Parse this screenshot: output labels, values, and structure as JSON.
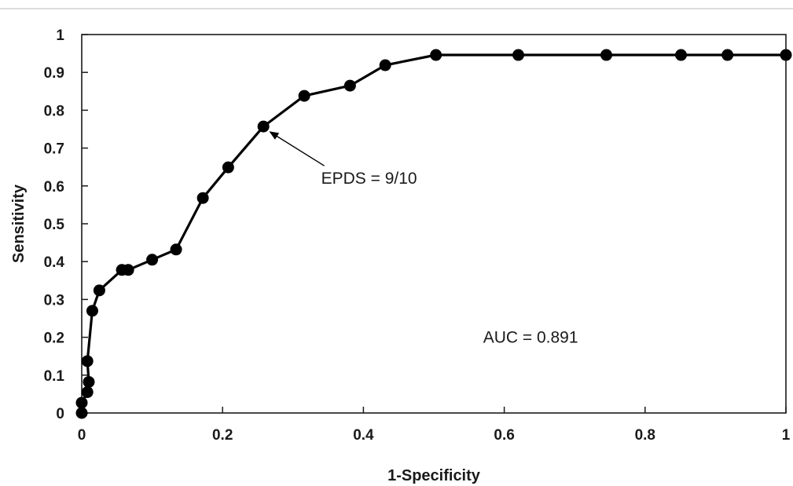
{
  "chart_data": {
    "type": "line",
    "title": "",
    "xlabel": "1-Specificity",
    "ylabel": "Sensitivity",
    "xlim": [
      0,
      1
    ],
    "ylim": [
      0,
      1
    ],
    "x_ticks": [
      "0",
      "0.2",
      "0.4",
      "0.6",
      "0.8",
      "1"
    ],
    "y_ticks": [
      "0",
      "0.1",
      "0.2",
      "0.3",
      "0.4",
      "0.5",
      "0.6",
      "0.7",
      "0.8",
      "0.9",
      "1"
    ],
    "grid": false,
    "line_color": "#000000",
    "series": [
      {
        "x": [
          0,
          0,
          0.008,
          0.01,
          0.008,
          0.015,
          0.025,
          0.057,
          0.066,
          0.1,
          0.134,
          0.172,
          0.208,
          0.258,
          0.316,
          0.381,
          0.431,
          0.503,
          0.62,
          0.745,
          0.851,
          0.917,
          1.0
        ],
        "y": [
          0,
          0.027,
          0.055,
          0.082,
          0.137,
          0.27,
          0.324,
          0.378,
          0.378,
          0.405,
          0.432,
          0.568,
          0.649,
          0.757,
          0.838,
          0.865,
          0.919,
          0.946,
          0.946,
          0.946,
          0.946,
          0.946,
          0.946
        ]
      }
    ],
    "annotations": [
      {
        "text": "EPDS = 9/10",
        "x": 0.34,
        "y": 0.62,
        "arrow_to_x": 0.268,
        "arrow_to_y": 0.742
      },
      {
        "text": "AUC = 0.891",
        "x": 0.57,
        "y": 0.2
      }
    ]
  }
}
